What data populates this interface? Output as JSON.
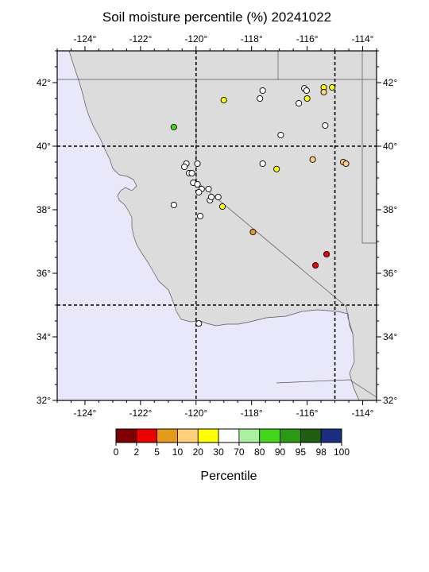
{
  "title": "Soil moisture percentile (%) 20241022",
  "map": {
    "lon_range": [
      -125,
      -113.5
    ],
    "lat_range": [
      32,
      43
    ],
    "lon_ticks": [
      -124,
      -122,
      -120,
      -118,
      -116,
      -114
    ],
    "lat_ticks": [
      32,
      34,
      36,
      38,
      40,
      42
    ],
    "lon_tick_labels": [
      "-124°",
      "-122°",
      "-120°",
      "-118°",
      "-116°",
      "-114°"
    ],
    "lat_tick_labels": [
      "32°",
      "34°",
      "36°",
      "38°",
      "40°",
      "42°"
    ],
    "gridlines_lon": [
      -120,
      -115
    ],
    "gridlines_lat": [
      35,
      40
    ],
    "ocean_color": "#e8e8fa",
    "land_color": "#dcdcdc"
  },
  "colorbar": {
    "title": "Percentile",
    "labels": [
      "0",
      "2",
      "5",
      "10",
      "20",
      "30",
      "70",
      "80",
      "90",
      "95",
      "98",
      "100"
    ],
    "colors": [
      "#800000",
      "#ee0000",
      "#e69a1a",
      "#ffd07a",
      "#ffff00",
      "#ffffff",
      "#aaf0a0",
      "#44d61a",
      "#2a9a10",
      "#1e5f10",
      "#1b2f80"
    ]
  },
  "stations": [
    {
      "lon": -119.0,
      "lat": 41.45,
      "color": "#ffff00"
    },
    {
      "lon": -117.6,
      "lat": 41.75,
      "color": "#ffffff"
    },
    {
      "lon": -117.7,
      "lat": 41.5,
      "color": "#ffffff"
    },
    {
      "lon": -116.1,
      "lat": 41.82,
      "color": "#ffffff"
    },
    {
      "lon": -116.02,
      "lat": 41.75,
      "color": "#ffffff"
    },
    {
      "lon": -115.4,
      "lat": 41.85,
      "color": "#ffff00"
    },
    {
      "lon": -115.1,
      "lat": 41.85,
      "color": "#ffff00"
    },
    {
      "lon": -115.4,
      "lat": 41.7,
      "color": "#ffd07a"
    },
    {
      "lon": -116.0,
      "lat": 41.5,
      "color": "#ffff00"
    },
    {
      "lon": -116.3,
      "lat": 41.35,
      "color": "#ffffff"
    },
    {
      "lon": -115.35,
      "lat": 40.65,
      "color": "#ffffff"
    },
    {
      "lon": -116.95,
      "lat": 40.35,
      "color": "#ffffff"
    },
    {
      "lon": -120.8,
      "lat": 40.6,
      "color": "#44d61a"
    },
    {
      "lon": -117.6,
      "lat": 39.45,
      "color": "#ffffff"
    },
    {
      "lon": -117.1,
      "lat": 39.28,
      "color": "#ffff00"
    },
    {
      "lon": -115.8,
      "lat": 39.58,
      "color": "#ffd07a"
    },
    {
      "lon": -114.7,
      "lat": 39.5,
      "color": "#ffd07a"
    },
    {
      "lon": -114.6,
      "lat": 39.45,
      "color": "#ffd07a"
    },
    {
      "lon": -120.35,
      "lat": 39.45,
      "color": "#ffffff"
    },
    {
      "lon": -120.42,
      "lat": 39.35,
      "color": "#ffffff"
    },
    {
      "lon": -119.95,
      "lat": 39.45,
      "color": "#ffffff"
    },
    {
      "lon": -120.25,
      "lat": 39.15,
      "color": "#ffffff"
    },
    {
      "lon": -120.15,
      "lat": 39.15,
      "color": "#ffffff"
    },
    {
      "lon": -120.1,
      "lat": 38.85,
      "color": "#ffffff"
    },
    {
      "lon": -119.95,
      "lat": 38.8,
      "color": "#ffffff"
    },
    {
      "lon": -119.8,
      "lat": 38.65,
      "color": "#ffffff"
    },
    {
      "lon": -119.9,
      "lat": 38.55,
      "color": "#ffffff"
    },
    {
      "lon": -119.55,
      "lat": 38.65,
      "color": "#ffffff"
    },
    {
      "lon": -119.5,
      "lat": 38.3,
      "color": "#ffffff"
    },
    {
      "lon": -119.45,
      "lat": 38.4,
      "color": "#ffffff"
    },
    {
      "lon": -119.2,
      "lat": 38.4,
      "color": "#ffffff"
    },
    {
      "lon": -119.05,
      "lat": 38.1,
      "color": "#ffff00"
    },
    {
      "lon": -120.8,
      "lat": 38.15,
      "color": "#ffffff"
    },
    {
      "lon": -119.85,
      "lat": 37.8,
      "color": "#ffffff"
    },
    {
      "lon": -117.95,
      "lat": 37.3,
      "color": "#e69a1a"
    },
    {
      "lon": -115.7,
      "lat": 36.25,
      "color": "#ee0000"
    },
    {
      "lon": -115.3,
      "lat": 36.6,
      "color": "#ee0000"
    },
    {
      "lon": -119.9,
      "lat": 34.42,
      "color": "#ffffff"
    }
  ]
}
